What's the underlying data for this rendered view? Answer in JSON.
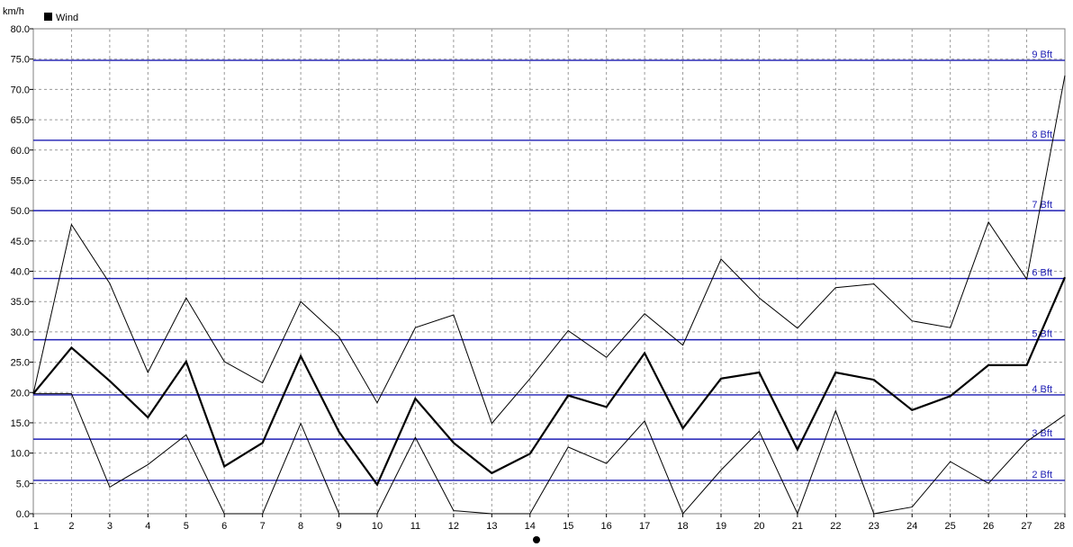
{
  "chart_data": {
    "type": "line",
    "ylabel": "km/h",
    "legend": {
      "label": "Wind",
      "placement": "top-left"
    },
    "ylim": [
      0,
      80
    ],
    "ytick_step": 5,
    "x": [
      1,
      2,
      3,
      4,
      5,
      6,
      7,
      8,
      9,
      10,
      11,
      12,
      13,
      14,
      15,
      16,
      17,
      18,
      19,
      20,
      21,
      22,
      23,
      24,
      25,
      26,
      27,
      28
    ],
    "grid": true,
    "series": [
      {
        "role": "mean",
        "color": "#000000",
        "values": [
          19.8,
          27.4,
          21.9,
          15.9,
          25.1,
          7.8,
          11.7,
          26.0,
          13.5,
          4.8,
          19.0,
          11.7,
          6.7,
          9.9,
          19.5,
          17.6,
          26.5,
          14.1,
          22.3,
          23.3,
          10.6,
          23.3,
          22.1,
          17.1,
          19.4,
          24.5,
          24.5,
          39.0
        ]
      },
      {
        "role": "max",
        "color": "#000000",
        "values": [
          19.8,
          47.7,
          38.0,
          23.3,
          35.6,
          25.1,
          21.6,
          35.0,
          29.2,
          18.3,
          30.7,
          32.8,
          14.9,
          22.3,
          30.2,
          25.8,
          33.0,
          27.8,
          42.0,
          35.6,
          30.6,
          37.3,
          37.9,
          31.8,
          30.7,
          48.1,
          38.7,
          72.3
        ]
      },
      {
        "role": "min",
        "color": "#000000",
        "values": [
          19.8,
          19.8,
          4.4,
          8.1,
          13.0,
          0.0,
          0.0,
          14.9,
          0.0,
          0.0,
          12.6,
          0.5,
          0.0,
          0.0,
          11.0,
          8.3,
          15.3,
          0.0,
          7.2,
          13.6,
          0.0,
          17.0,
          0.0,
          1.1,
          8.6,
          5.0,
          11.9,
          16.3
        ]
      }
    ],
    "reference_lines": [
      {
        "label": "2 Bft",
        "value": 5.5,
        "color": "#1e1eb4"
      },
      {
        "label": "3 Bft",
        "value": 12.3,
        "color": "#1e1eb4"
      },
      {
        "label": "4 Bft",
        "value": 19.6,
        "color": "#1e1eb4"
      },
      {
        "label": "5 Bft",
        "value": 28.7,
        "color": "#1e1eb4"
      },
      {
        "label": "6 Bft",
        "value": 38.8,
        "color": "#1e1eb4"
      },
      {
        "label": "7 Bft",
        "value": 50.0,
        "color": "#1e1eb4"
      },
      {
        "label": "8 Bft",
        "value": 61.6,
        "color": "#1e1eb4"
      },
      {
        "label": "9 Bft",
        "value": 74.8,
        "color": "#1e1eb4"
      }
    ]
  }
}
